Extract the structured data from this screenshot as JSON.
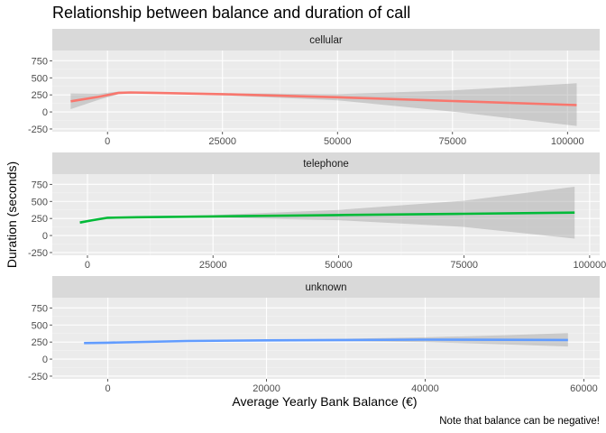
{
  "chart_data": {
    "type": "line",
    "title": "Relationship between balance and duration of call",
    "xlabel": "Average Yearly Bank Balance (€)",
    "ylabel": "Duration (seconds)",
    "caption": "Note that balance can be negative!",
    "y_ticks": [
      -250,
      0,
      250,
      500,
      750
    ],
    "y_tick_labels": [
      "-250",
      "0",
      "250",
      "500",
      "750"
    ],
    "ylim": [
      -290,
      900
    ],
    "grid": true,
    "panels": [
      {
        "name": "cellular",
        "color": "#F8766D",
        "xlim": [
          -12000,
          107000
        ],
        "x_ticks": [
          0,
          25000,
          50000,
          75000,
          100000
        ],
        "x_tick_labels": [
          "0",
          "25000",
          "50000",
          "75000",
          "100000"
        ],
        "x": [
          -8000,
          -2000,
          2500,
          5000,
          10000,
          25000,
          50000,
          75000,
          102000
        ],
        "y": [
          155,
          220,
          280,
          285,
          280,
          260,
          215,
          160,
          100
        ],
        "ci_lower": [
          40,
          175,
          262,
          272,
          270,
          245,
          170,
          5,
          -205
        ],
        "ci_upper": [
          270,
          265,
          298,
          298,
          290,
          275,
          260,
          315,
          420
        ]
      },
      {
        "name": "telephone",
        "color": "#00BA38",
        "xlim": [
          -7000,
          102000
        ],
        "x_ticks": [
          0,
          25000,
          50000,
          75000,
          100000
        ],
        "x_tick_labels": [
          "0",
          "25000",
          "50000",
          "75000",
          "100000"
        ],
        "x": [
          -1500,
          1000,
          4000,
          10000,
          25000,
          50000,
          75000,
          97000
        ],
        "y": [
          190,
          225,
          260,
          268,
          280,
          300,
          318,
          335
        ],
        "ci_lower": [
          170,
          215,
          252,
          260,
          260,
          225,
          125,
          -45
        ],
        "ci_upper": [
          210,
          235,
          268,
          276,
          300,
          375,
          510,
          715
        ]
      },
      {
        "name": "unknown",
        "color": "#619CFF",
        "xlim": [
          -7000,
          62000
        ],
        "x_ticks": [
          0,
          20000,
          40000,
          60000
        ],
        "x_tick_labels": [
          "0",
          "20000",
          "40000",
          "60000"
        ],
        "x": [
          -3000,
          0,
          10000,
          20000,
          30000,
          40000,
          50000,
          58000
        ],
        "y": [
          235,
          240,
          265,
          275,
          280,
          285,
          282,
          280
        ],
        "ci_lower": [
          220,
          230,
          258,
          265,
          262,
          250,
          215,
          185
        ],
        "ci_upper": [
          250,
          250,
          272,
          285,
          298,
          320,
          350,
          380
        ]
      }
    ]
  }
}
